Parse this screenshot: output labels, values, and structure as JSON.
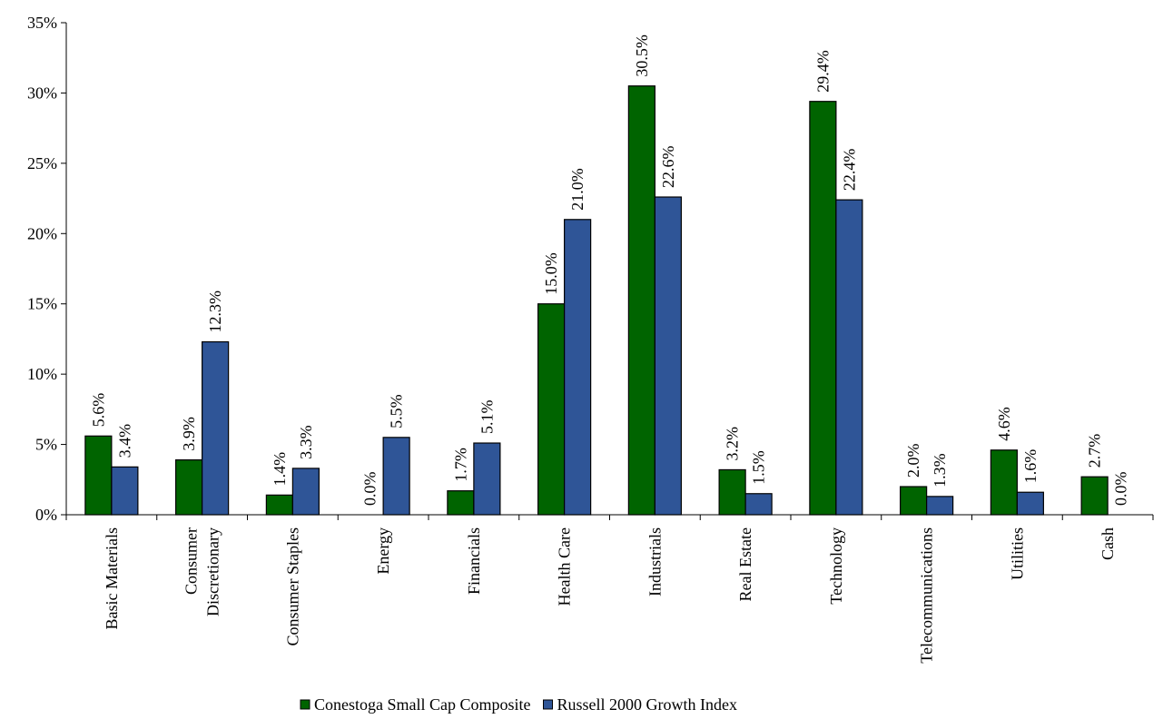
{
  "chart_data": {
    "type": "bar",
    "categories": [
      [
        "Basic Materials"
      ],
      [
        "Consumer",
        "Discretionary"
      ],
      [
        "Consumer Staples"
      ],
      [
        "Energy"
      ],
      [
        "Financials"
      ],
      [
        "Health Care"
      ],
      [
        "Industrials"
      ],
      [
        "Real Estate"
      ],
      [
        "Technology"
      ],
      [
        "Telecommunications"
      ],
      [
        "Utilities"
      ],
      [
        "Cash"
      ]
    ],
    "series": [
      {
        "name": "Conestoga Small Cap Composite",
        "color": "#006400",
        "values": [
          5.6,
          3.9,
          1.4,
          0.0,
          1.7,
          15.0,
          30.5,
          3.2,
          29.4,
          2.0,
          4.6,
          2.7
        ]
      },
      {
        "name": "Russell 2000 Growth Index",
        "color": "#2F5597",
        "values": [
          3.4,
          12.3,
          3.3,
          5.5,
          5.1,
          21.0,
          22.6,
          1.5,
          22.4,
          1.3,
          1.6,
          0.0
        ]
      }
    ],
    "ylim": [
      0,
      35
    ],
    "yticks": [
      0,
      5,
      10,
      15,
      20,
      25,
      30,
      35
    ],
    "yticks_format": "percent",
    "data_labels": "rotated-vertical",
    "gridlines": false,
    "legend_position": "bottom-center",
    "title": "",
    "xlabel": "",
    "ylabel": ""
  }
}
